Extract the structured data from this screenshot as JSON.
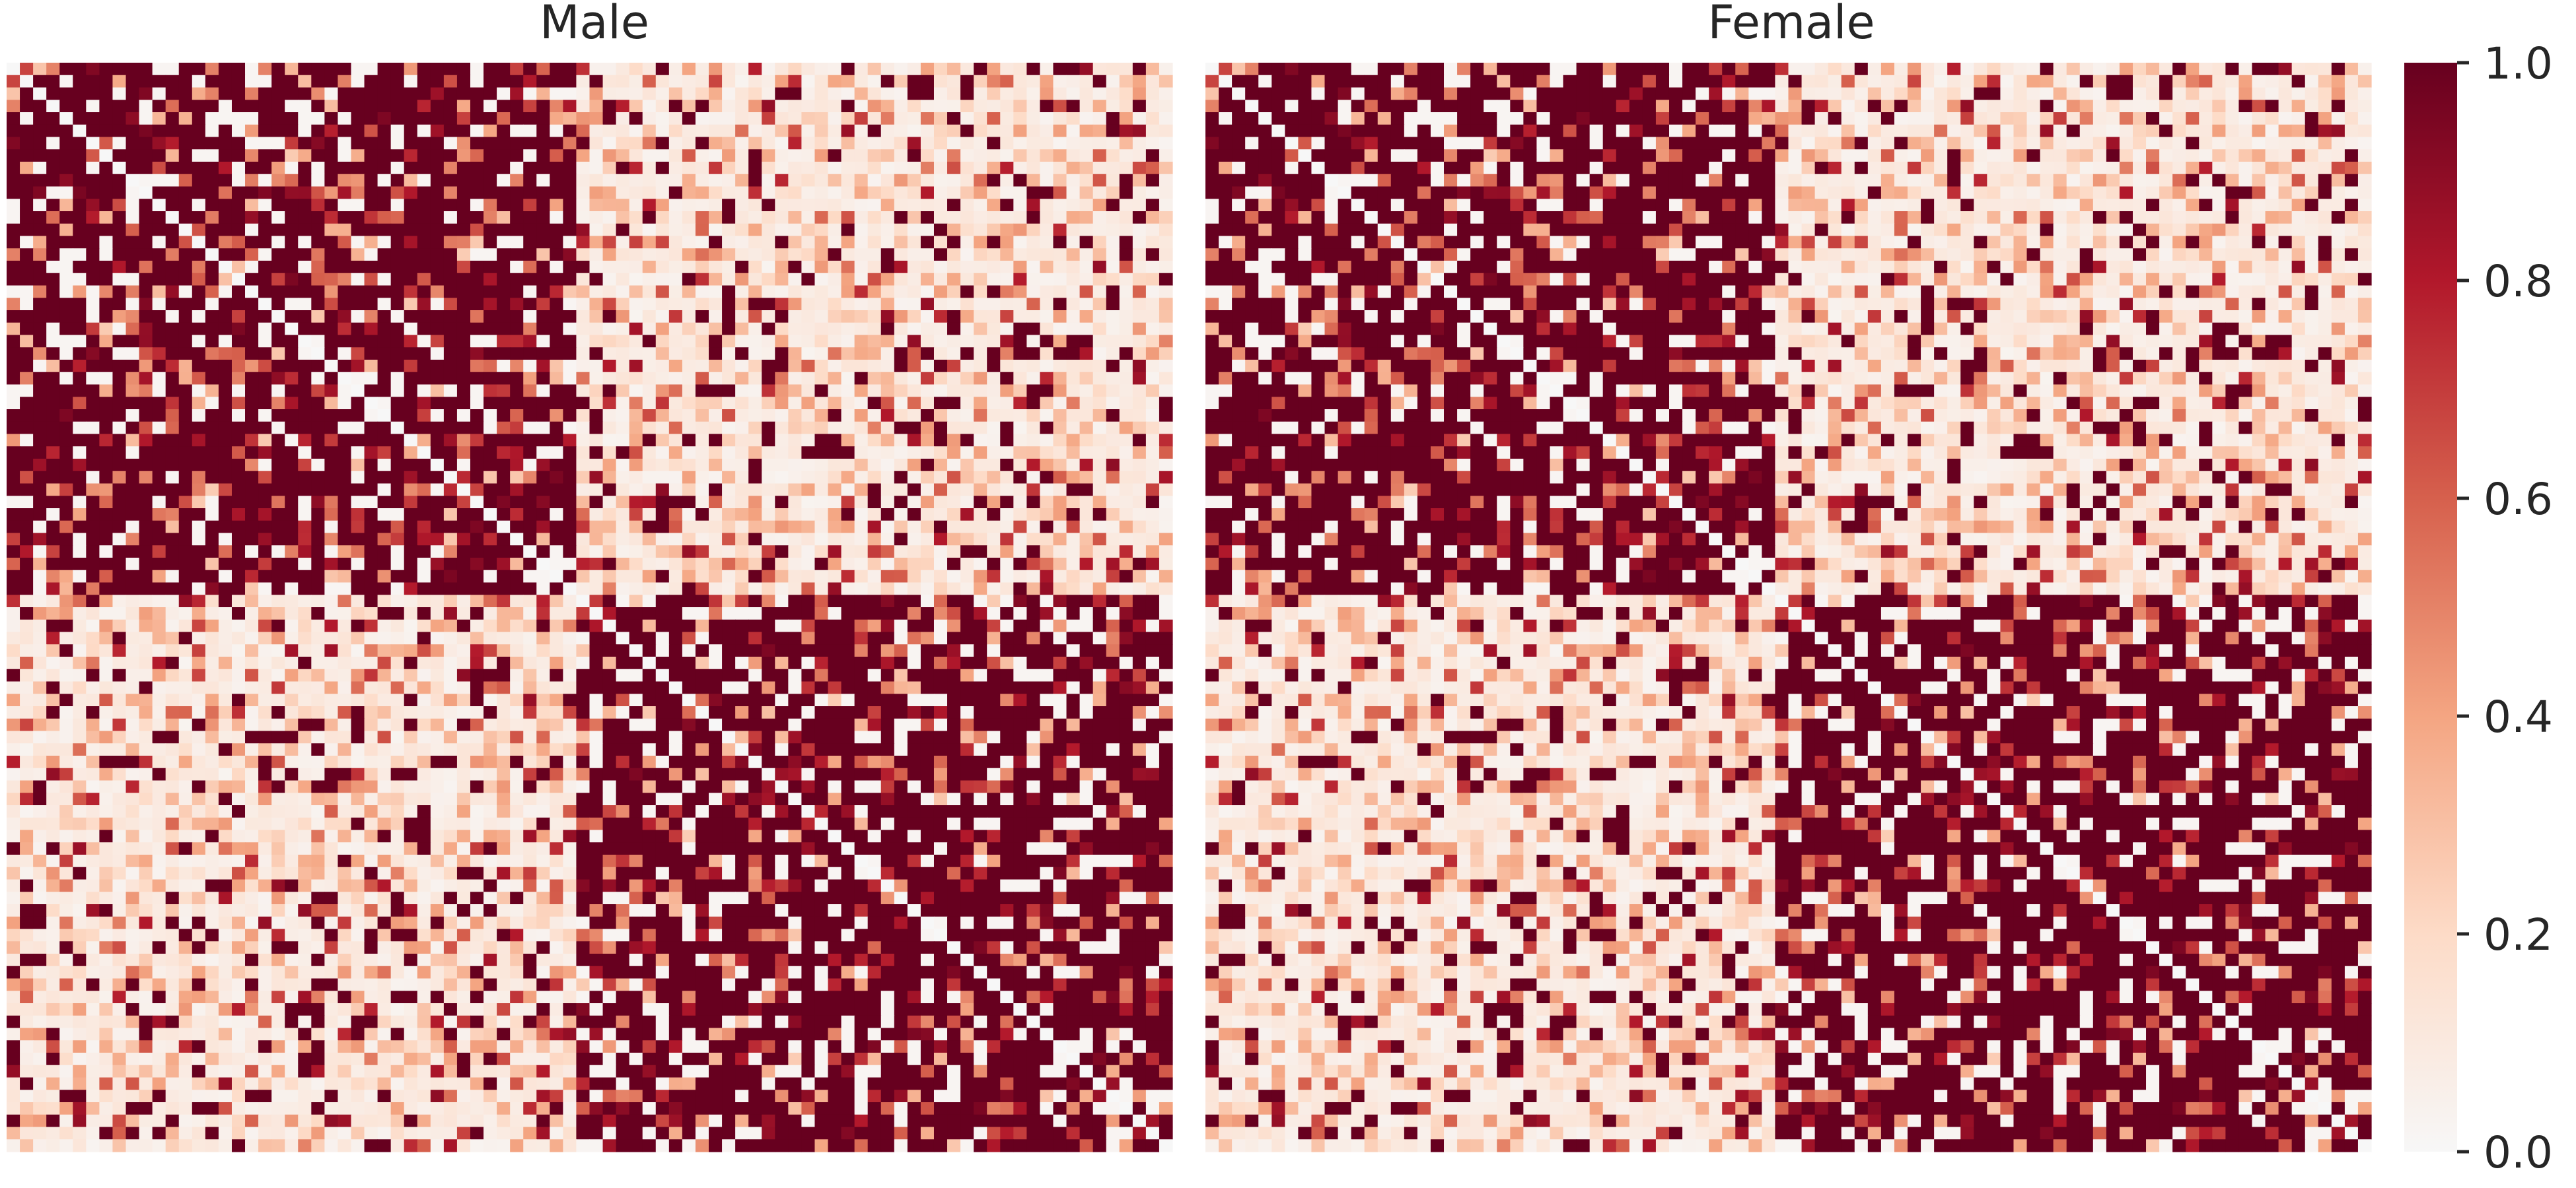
{
  "chart_data": [
    {
      "type": "heatmap",
      "title": "Male",
      "colormap": "Reds",
      "value_range": [
        0.0,
        1.0
      ],
      "grid": false,
      "n_rows": 88,
      "n_cols": 88,
      "blocks": [
        {
          "rows": "1-43",
          "cols": "1-43",
          "level": "high",
          "typical_value": 0.85
        },
        {
          "rows": "1-43",
          "cols": "44-88",
          "level": "low",
          "typical_value": 0.2
        },
        {
          "rows": "44-88",
          "cols": "1-43",
          "level": "low",
          "typical_value": 0.2
        },
        {
          "rows": "44-88",
          "cols": "44-88",
          "level": "high",
          "typical_value": 0.85
        }
      ],
      "diagonal_value": 0.0,
      "seed": 7
    },
    {
      "type": "heatmap",
      "title": "Female",
      "colormap": "Reds",
      "value_range": [
        0.0,
        1.0
      ],
      "grid": false,
      "n_rows": 88,
      "n_cols": 88,
      "blocks": [
        {
          "rows": "1-43",
          "cols": "1-43",
          "level": "high",
          "typical_value": 0.85
        },
        {
          "rows": "1-43",
          "cols": "44-88",
          "level": "low",
          "typical_value": 0.2
        },
        {
          "rows": "44-88",
          "cols": "1-43",
          "level": "low",
          "typical_value": 0.2
        },
        {
          "rows": "44-88",
          "cols": "44-88",
          "level": "high",
          "typical_value": 0.85
        }
      ],
      "diagonal_value": 0.0,
      "seed": 7
    }
  ],
  "colorbar": {
    "ticks": [
      "0.0",
      "0.2",
      "0.4",
      "0.6",
      "0.8",
      "1.0"
    ],
    "colors": [
      "#f7f7f7",
      "#fddbc7",
      "#f4a582",
      "#d6604d",
      "#b2182b",
      "#67001f"
    ]
  }
}
